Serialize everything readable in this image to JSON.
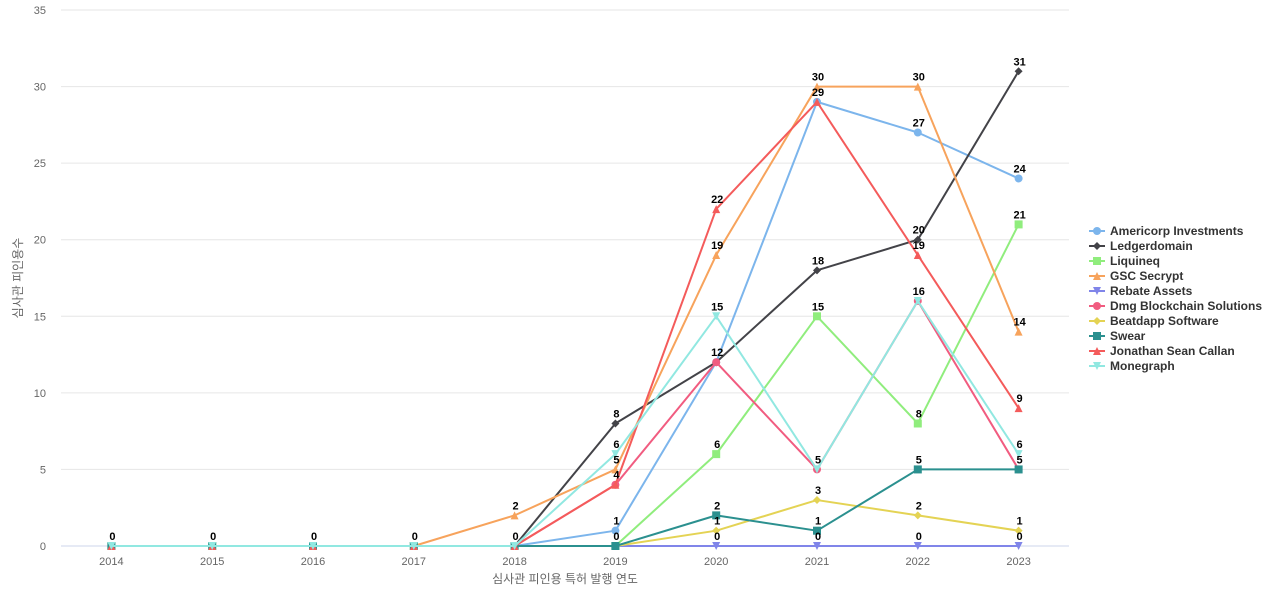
{
  "chart_data": {
    "type": "line",
    "title": "",
    "xlabel": "심사관 피인용 특허 발행 연도",
    "ylabel": "심사관 피인용수",
    "ylim": [
      0,
      35
    ],
    "yticks": [
      0,
      5,
      10,
      15,
      20,
      25,
      30,
      35
    ],
    "grid": true,
    "legend_position": "right",
    "categories": [
      "2014",
      "2015",
      "2016",
      "2017",
      "2018",
      "2019",
      "2020",
      "2021",
      "2022",
      "2023"
    ],
    "series": [
      {
        "name": "Americorp Investments",
        "color": "#7cb5ec",
        "marker": "circle",
        "values": [
          0,
          0,
          0,
          0,
          0,
          1,
          12,
          29,
          27,
          24
        ]
      },
      {
        "name": "Ledgerdomain",
        "color": "#434348",
        "marker": "diamond",
        "values": [
          0,
          0,
          0,
          0,
          0,
          8,
          12,
          18,
          20,
          31
        ]
      },
      {
        "name": "Liquineq",
        "color": "#90ed7d",
        "marker": "square",
        "values": [
          0,
          0,
          0,
          0,
          0,
          0,
          6,
          15,
          8,
          21
        ]
      },
      {
        "name": "GSC Secrypt",
        "color": "#f7a35c",
        "marker": "triangle",
        "values": [
          0,
          0,
          0,
          0,
          2,
          5,
          19,
          30,
          30,
          14
        ]
      },
      {
        "name": "Rebate Assets",
        "color": "#8085e9",
        "marker": "triangle-down",
        "values": [
          0,
          0,
          0,
          0,
          0,
          0,
          0,
          0,
          0,
          0
        ]
      },
      {
        "name": "Dmg Blockchain Solutions",
        "color": "#f15c80",
        "marker": "circle",
        "values": [
          0,
          0,
          0,
          0,
          0,
          4,
          12,
          5,
          16,
          5
        ]
      },
      {
        "name": "Beatdapp Software",
        "color": "#e4d354",
        "marker": "diamond",
        "values": [
          0,
          0,
          0,
          0,
          0,
          0,
          1,
          3,
          2,
          1
        ]
      },
      {
        "name": "Swear",
        "color": "#2b908f",
        "marker": "square",
        "values": [
          0,
          0,
          0,
          0,
          0,
          0,
          2,
          1,
          5,
          5
        ]
      },
      {
        "name": "Jonathan Sean Callan",
        "color": "#f45b5b",
        "marker": "triangle",
        "values": [
          0,
          0,
          0,
          0,
          0,
          4,
          22,
          29,
          19,
          9
        ]
      },
      {
        "name": "Monegraph",
        "color": "#91e8e1",
        "marker": "triangle-down",
        "values": [
          0,
          0,
          0,
          0,
          0,
          6,
          15,
          5,
          16,
          6
        ]
      }
    ],
    "data_labels": [
      {
        "category": "2014",
        "text": "0"
      },
      {
        "category": "2015",
        "text": "0"
      },
      {
        "category": "2016",
        "text": "0"
      },
      {
        "category": "2017",
        "text": "0"
      },
      {
        "category": "2018",
        "text": "0"
      },
      {
        "category": "2018",
        "text": "2"
      },
      {
        "category": "2019",
        "text": "0"
      },
      {
        "category": "2019",
        "text": "1"
      },
      {
        "category": "2019",
        "text": "4"
      },
      {
        "category": "2019",
        "text": "5"
      },
      {
        "category": "2019",
        "text": "6"
      },
      {
        "category": "2019",
        "text": "8"
      },
      {
        "category": "2020",
        "text": "0"
      },
      {
        "category": "2020",
        "text": "1"
      },
      {
        "category": "2020",
        "text": "2"
      },
      {
        "category": "2020",
        "text": "6"
      },
      {
        "category": "2020",
        "text": "12"
      },
      {
        "category": "2020",
        "text": "15"
      },
      {
        "category": "2020",
        "text": "19"
      },
      {
        "category": "2020",
        "text": "22"
      },
      {
        "category": "2021",
        "text": "0"
      },
      {
        "category": "2021",
        "text": "1"
      },
      {
        "category": "2021",
        "text": "3"
      },
      {
        "category": "2021",
        "text": "5"
      },
      {
        "category": "2021",
        "text": "15"
      },
      {
        "category": "2021",
        "text": "18"
      },
      {
        "category": "2021",
        "text": "29"
      },
      {
        "category": "2021",
        "text": "30"
      },
      {
        "category": "2022",
        "text": "0"
      },
      {
        "category": "2022",
        "text": "2"
      },
      {
        "category": "2022",
        "text": "5"
      },
      {
        "category": "2022",
        "text": "8"
      },
      {
        "category": "2022",
        "text": "16"
      },
      {
        "category": "2022",
        "text": "19"
      },
      {
        "category": "2022",
        "text": "20"
      },
      {
        "category": "2022",
        "text": "27"
      },
      {
        "category": "2022",
        "text": "30"
      },
      {
        "category": "2023",
        "text": "0"
      },
      {
        "category": "2023",
        "text": "1"
      },
      {
        "category": "2023",
        "text": "5"
      },
      {
        "category": "2023",
        "text": "6"
      },
      {
        "category": "2023",
        "text": "9"
      },
      {
        "category": "2023",
        "text": "14"
      },
      {
        "category": "2023",
        "text": "21"
      },
      {
        "category": "2023",
        "text": "24"
      },
      {
        "category": "2023",
        "text": "31"
      }
    ]
  }
}
